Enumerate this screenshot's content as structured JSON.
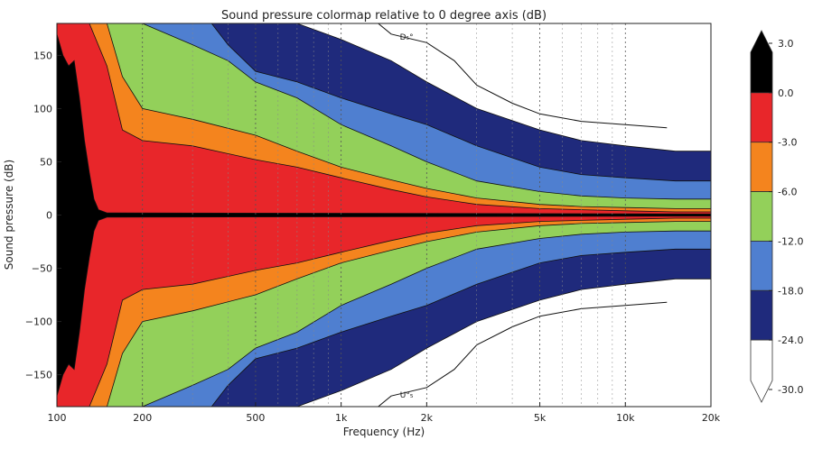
{
  "chart_data": {
    "type": "heatmap",
    "title": "Sound pressure colormap relative to 0 degree axis (dB)",
    "xlabel": "Frequency (Hz)",
    "ylabel": "Sound pressure (dB)",
    "x_scale": "log",
    "xlim": [
      100,
      20000
    ],
    "ylim": [
      -180,
      180
    ],
    "xticks": [
      {
        "value": 100,
        "label": "100"
      },
      {
        "value": 200,
        "label": "200"
      },
      {
        "value": 500,
        "label": "500"
      },
      {
        "value": 1000,
        "label": "1k"
      },
      {
        "value": 2000,
        "label": "2k"
      },
      {
        "value": 5000,
        "label": "5k"
      },
      {
        "value": 10000,
        "label": "10k"
      },
      {
        "value": 20000,
        "label": "20k"
      }
    ],
    "yticks": [
      {
        "value": 150,
        "label": "150"
      },
      {
        "value": 100,
        "label": "100"
      },
      {
        "value": 50,
        "label": "50"
      },
      {
        "value": 0,
        "label": "0"
      },
      {
        "value": -50,
        "label": "−50"
      },
      {
        "value": -100,
        "label": "−100"
      },
      {
        "value": -150,
        "label": "−150"
      }
    ],
    "grid": true,
    "colorbar": {
      "levels": [
        {
          "value": 3.0,
          "label": "3.0"
        },
        {
          "value": 0.0,
          "label": "0.0"
        },
        {
          "value": -3.0,
          "label": "-3.0"
        },
        {
          "value": -6.0,
          "label": "-6.0"
        },
        {
          "value": -12.0,
          "label": "-12.0"
        },
        {
          "value": -18.0,
          "label": "-18.0"
        },
        {
          "value": -24.0,
          "label": "-24.0"
        },
        {
          "value": -30.0,
          "label": "-30.0"
        }
      ],
      "bands": [
        {
          "range": [
            0.0,
            3.0
          ],
          "color": "#000000"
        },
        {
          "range": [
            -3.0,
            0.0
          ],
          "color": "#e8262a"
        },
        {
          "range": [
            -6.0,
            -3.0
          ],
          "color": "#f4841e"
        },
        {
          "range": [
            -12.0,
            -6.0
          ],
          "color": "#93d05a"
        },
        {
          "range": [
            -18.0,
            -12.0
          ],
          "color": "#4f7fd0"
        },
        {
          "range": [
            -24.0,
            -18.0
          ],
          "color": "#1f2a7c"
        },
        {
          "range": [
            -30.0,
            -24.0
          ],
          "color": "#ffffff"
        }
      ]
    },
    "contour_bands": [
      {
        "level": -24,
        "color": "#1f2a7c",
        "half_width": [
          [
            100,
            180
          ],
          [
            200,
            180
          ],
          [
            300,
            180
          ],
          [
            400,
            180
          ],
          [
            500,
            180
          ],
          [
            600,
            180
          ],
          [
            700,
            180
          ],
          [
            1000,
            165
          ],
          [
            1500,
            145
          ],
          [
            2000,
            125
          ],
          [
            3000,
            100
          ],
          [
            5000,
            80
          ],
          [
            7000,
            70
          ],
          [
            10000,
            65
          ],
          [
            15000,
            60
          ],
          [
            20000,
            60
          ]
        ]
      },
      {
        "level": -18,
        "color": "#4f7fd0",
        "half_width": [
          [
            100,
            180
          ],
          [
            200,
            180
          ],
          [
            300,
            180
          ],
          [
            350,
            180
          ],
          [
            400,
            160
          ],
          [
            500,
            135
          ],
          [
            700,
            125
          ],
          [
            1000,
            110
          ],
          [
            1500,
            95
          ],
          [
            2000,
            85
          ],
          [
            3000,
            65
          ],
          [
            5000,
            45
          ],
          [
            7000,
            38
          ],
          [
            10000,
            35
          ],
          [
            15000,
            32
          ],
          [
            20000,
            32
          ]
        ]
      },
      {
        "level": -12,
        "color": "#93d05a",
        "half_width": [
          [
            100,
            180
          ],
          [
            150,
            180
          ],
          [
            200,
            180
          ],
          [
            300,
            160
          ],
          [
            400,
            145
          ],
          [
            500,
            125
          ],
          [
            700,
            110
          ],
          [
            1000,
            85
          ],
          [
            1500,
            65
          ],
          [
            2000,
            50
          ],
          [
            3000,
            32
          ],
          [
            5000,
            22
          ],
          [
            7000,
            18
          ],
          [
            10000,
            16
          ],
          [
            15000,
            15
          ],
          [
            20000,
            15
          ]
        ]
      },
      {
        "level": -6,
        "color": "#f4841e",
        "half_width": [
          [
            100,
            180
          ],
          [
            150,
            180
          ],
          [
            170,
            130
          ],
          [
            200,
            100
          ],
          [
            300,
            90
          ],
          [
            500,
            75
          ],
          [
            700,
            60
          ],
          [
            1000,
            45
          ],
          [
            1500,
            33
          ],
          [
            2000,
            25
          ],
          [
            3000,
            16
          ],
          [
            5000,
            10
          ],
          [
            7000,
            8
          ],
          [
            10000,
            7
          ],
          [
            15000,
            6
          ],
          [
            20000,
            6
          ]
        ]
      },
      {
        "level": -3,
        "color": "#e8262a",
        "half_width": [
          [
            100,
            180
          ],
          [
            130,
            180
          ],
          [
            150,
            140
          ],
          [
            170,
            80
          ],
          [
            200,
            70
          ],
          [
            300,
            65
          ],
          [
            500,
            52
          ],
          [
            700,
            45
          ],
          [
            1000,
            35
          ],
          [
            1500,
            24
          ],
          [
            2000,
            17
          ],
          [
            3000,
            10
          ],
          [
            5000,
            6
          ],
          [
            7000,
            5
          ],
          [
            10000,
            4
          ],
          [
            15000,
            3
          ],
          [
            20000,
            3
          ]
        ]
      },
      {
        "level": 0,
        "color": "#000000",
        "half_width": [
          [
            100,
            170
          ],
          [
            105,
            150
          ],
          [
            110,
            140
          ],
          [
            115,
            145
          ],
          [
            120,
            110
          ],
          [
            125,
            70
          ],
          [
            130,
            40
          ],
          [
            135,
            15
          ],
          [
            140,
            5
          ],
          [
            150,
            2
          ],
          [
            20000,
            1
          ]
        ]
      }
    ],
    "outline_contour": {
      "level": -30,
      "points": [
        [
          1350,
          180
        ],
        [
          1500,
          170
        ],
        [
          2000,
          162
        ],
        [
          2500,
          145
        ],
        [
          3000,
          122
        ],
        [
          4000,
          105
        ],
        [
          5000,
          95
        ],
        [
          7000,
          88
        ],
        [
          10000,
          85
        ],
        [
          14000,
          82
        ]
      ]
    },
    "annotations": [
      {
        "text": "D₅°",
        "x": 1700,
        "y": 168
      },
      {
        "text": "U°₅",
        "x": 1700,
        "y": -168
      }
    ]
  }
}
